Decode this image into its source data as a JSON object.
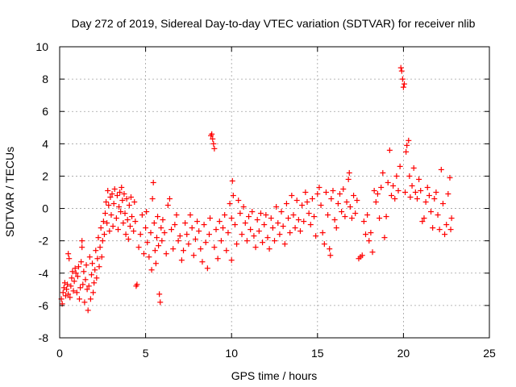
{
  "chart_data": {
    "type": "scatter",
    "title": "Day 272 of 2019, Sidereal Day-to-day VTEC variation (SDTVAR) for receiver nlib",
    "xlabel": "GPS time / hours",
    "ylabel": "SDTVAR / TECUs",
    "xlim": [
      0,
      25
    ],
    "ylim": [
      -8,
      10
    ],
    "xticks": [
      0,
      5,
      10,
      15,
      20,
      25
    ],
    "yticks": [
      -8,
      -6,
      -4,
      -2,
      0,
      2,
      4,
      6,
      8,
      10
    ],
    "xtick_labels": [
      "0",
      "5",
      "10",
      "15",
      "20",
      "25"
    ],
    "ytick_labels": [
      "-8",
      "-6",
      "-4",
      "-2",
      "0",
      "2",
      "4",
      "6",
      "8",
      "10"
    ],
    "grid": true,
    "marker": "+",
    "color": "#ff0000",
    "series": [
      {
        "name": "SDTVAR",
        "points": [
          [
            0.1,
            -5.6
          ],
          [
            0.15,
            -5.9
          ],
          [
            0.2,
            -5.2
          ],
          [
            0.25,
            -4.9
          ],
          [
            0.3,
            -4.6
          ],
          [
            0.35,
            -5.4
          ],
          [
            0.4,
            -5.0
          ],
          [
            0.45,
            -4.7
          ],
          [
            0.5,
            -5.3
          ],
          [
            0.5,
            -2.8
          ],
          [
            0.55,
            -3.1
          ],
          [
            0.6,
            -5.5
          ],
          [
            0.65,
            -4.8
          ],
          [
            0.7,
            -4.3
          ],
          [
            0.75,
            -3.9
          ],
          [
            0.8,
            -5.1
          ],
          [
            0.85,
            -4.5
          ],
          [
            0.9,
            -3.7
          ],
          [
            0.95,
            -4.0
          ],
          [
            1.0,
            -5.2
          ],
          [
            1.05,
            -4.2
          ],
          [
            1.1,
            -3.6
          ],
          [
            1.15,
            -5.6
          ],
          [
            1.2,
            -4.9
          ],
          [
            1.25,
            -3.3
          ],
          [
            1.3,
            -2.4
          ],
          [
            1.3,
            -2.0
          ],
          [
            1.35,
            -4.7
          ],
          [
            1.4,
            -3.9
          ],
          [
            1.45,
            -5.8
          ],
          [
            1.5,
            -4.4
          ],
          [
            1.55,
            -3.5
          ],
          [
            1.6,
            -5.0
          ],
          [
            1.65,
            -6.3
          ],
          [
            1.7,
            -4.8
          ],
          [
            1.75,
            -3.0
          ],
          [
            1.8,
            -5.6
          ],
          [
            1.85,
            -4.1
          ],
          [
            1.9,
            -3.4
          ],
          [
            1.95,
            -5.2
          ],
          [
            2.0,
            -4.6
          ],
          [
            2.05,
            -3.8
          ],
          [
            2.1,
            -2.6
          ],
          [
            2.15,
            -4.3
          ],
          [
            2.2,
            -3.1
          ],
          [
            2.25,
            -1.8
          ],
          [
            2.3,
            -3.6
          ],
          [
            2.35,
            -2.4
          ],
          [
            2.4,
            -1.2
          ],
          [
            2.45,
            -3.0
          ],
          [
            2.5,
            -2.0
          ],
          [
            2.55,
            -0.8
          ],
          [
            2.6,
            -1.6
          ],
          [
            2.65,
            -0.3
          ],
          [
            2.7,
            0.4
          ],
          [
            2.75,
            -0.9
          ],
          [
            2.8,
            1.1
          ],
          [
            2.85,
            0.2
          ],
          [
            2.9,
            -1.4
          ],
          [
            2.95,
            0.7
          ],
          [
            3.0,
            -0.4
          ],
          [
            3.05,
            0.9
          ],
          [
            3.1,
            -1.1
          ],
          [
            3.15,
            0.3
          ],
          [
            3.2,
            1.2
          ],
          [
            3.3,
            -0.6
          ],
          [
            3.35,
            0.8
          ],
          [
            3.4,
            -1.3
          ],
          [
            3.45,
            0.1
          ],
          [
            3.5,
            1.0
          ],
          [
            3.55,
            -0.2
          ],
          [
            3.6,
            1.3
          ],
          [
            3.65,
            0.5
          ],
          [
            3.7,
            -0.9
          ],
          [
            3.75,
            0.9
          ],
          [
            3.8,
            -0.3
          ],
          [
            3.85,
            -1.6
          ],
          [
            3.9,
            0.6
          ],
          [
            3.95,
            -0.7
          ],
          [
            4.0,
            -1.9
          ],
          [
            4.05,
            0.2
          ],
          [
            4.1,
            -1.1
          ],
          [
            4.15,
            0.7
          ],
          [
            4.2,
            -0.5
          ],
          [
            4.3,
            -1.4
          ],
          [
            4.35,
            0.4
          ],
          [
            4.4,
            -0.8
          ],
          [
            4.45,
            -4.8
          ],
          [
            4.5,
            -4.7
          ],
          [
            4.6,
            -2.4
          ],
          [
            4.7,
            -1.6
          ],
          [
            4.8,
            -0.4
          ],
          [
            4.9,
            -2.8
          ],
          [
            5.0,
            -1.2
          ],
          [
            5.05,
            -0.2
          ],
          [
            5.1,
            -2.1
          ],
          [
            5.2,
            -3.0
          ],
          [
            5.3,
            -1.5
          ],
          [
            5.35,
            -3.8
          ],
          [
            5.4,
            0.6
          ],
          [
            5.45,
            1.6
          ],
          [
            5.5,
            -0.9
          ],
          [
            5.55,
            -2.6
          ],
          [
            5.6,
            -3.4
          ],
          [
            5.65,
            -1.8
          ],
          [
            5.7,
            -0.5
          ],
          [
            5.75,
            -2.3
          ],
          [
            5.8,
            -5.3
          ],
          [
            5.85,
            -5.8
          ],
          [
            5.9,
            -1.2
          ],
          [
            5.95,
            -2.0
          ],
          [
            6.0,
            -0.7
          ],
          [
            6.1,
            -1.5
          ],
          [
            6.2,
            -2.8
          ],
          [
            6.3,
            0.2
          ],
          [
            6.4,
            0.6
          ],
          [
            6.5,
            -1.3
          ],
          [
            6.6,
            -2.5
          ],
          [
            6.7,
            -1.0
          ],
          [
            6.8,
            -0.4
          ],
          [
            6.9,
            -2.0
          ],
          [
            7.0,
            -1.7
          ],
          [
            7.1,
            -3.2
          ],
          [
            7.2,
            -2.6
          ],
          [
            7.3,
            -0.9
          ],
          [
            7.4,
            -1.6
          ],
          [
            7.5,
            -2.2
          ],
          [
            7.6,
            -0.4
          ],
          [
            7.7,
            -1.2
          ],
          [
            7.8,
            -2.9
          ],
          [
            7.9,
            -1.9
          ],
          [
            8.0,
            -0.8
          ],
          [
            8.1,
            -1.4
          ],
          [
            8.2,
            -2.5
          ],
          [
            8.3,
            -3.3
          ],
          [
            8.4,
            -1.0
          ],
          [
            8.5,
            -2.1
          ],
          [
            8.6,
            -3.7
          ],
          [
            8.7,
            -1.6
          ],
          [
            8.75,
            -0.6
          ],
          [
            8.8,
            4.5
          ],
          [
            8.85,
            4.6
          ],
          [
            8.9,
            4.3
          ],
          [
            8.95,
            4.0
          ],
          [
            9.0,
            3.7
          ],
          [
            9.0,
            -2.4
          ],
          [
            9.1,
            -1.3
          ],
          [
            9.2,
            -3.1
          ],
          [
            9.3,
            -0.8
          ],
          [
            9.4,
            -2.0
          ],
          [
            9.5,
            -1.2
          ],
          [
            9.6,
            -0.4
          ],
          [
            9.7,
            -2.6
          ],
          [
            9.8,
            -1.5
          ],
          [
            9.9,
            0.3
          ],
          [
            10.0,
            -0.6
          ],
          [
            10.0,
            -3.2
          ],
          [
            10.05,
            1.7
          ],
          [
            10.1,
            0.8
          ],
          [
            10.2,
            -1.0
          ],
          [
            10.3,
            -2.2
          ],
          [
            10.4,
            0.5
          ],
          [
            10.5,
            -0.3
          ],
          [
            10.6,
            -1.6
          ],
          [
            10.7,
            0.1
          ],
          [
            10.8,
            -0.9
          ],
          [
            10.9,
            -2.0
          ],
          [
            11.0,
            -0.5
          ],
          [
            11.1,
            -1.3
          ],
          [
            11.2,
            -0.2
          ],
          [
            11.3,
            -1.7
          ],
          [
            11.4,
            -2.4
          ],
          [
            11.5,
            -0.7
          ],
          [
            11.6,
            -1.4
          ],
          [
            11.7,
            -0.3
          ],
          [
            11.8,
            -2.1
          ],
          [
            11.9,
            -1.0
          ],
          [
            12.0,
            -0.4
          ],
          [
            12.1,
            -1.8
          ],
          [
            12.2,
            -2.5
          ],
          [
            12.3,
            -0.6
          ],
          [
            12.4,
            -1.2
          ],
          [
            12.5,
            -2.0
          ],
          [
            12.6,
            0.1
          ],
          [
            12.7,
            -0.9
          ],
          [
            12.8,
            -1.6
          ],
          [
            12.9,
            -0.2
          ],
          [
            13.0,
            -1.1
          ],
          [
            13.1,
            -2.2
          ],
          [
            13.2,
            0.3
          ],
          [
            13.3,
            -0.6
          ],
          [
            13.4,
            -1.5
          ],
          [
            13.5,
            0.8
          ],
          [
            13.6,
            -0.4
          ],
          [
            13.7,
            -1.2
          ],
          [
            13.8,
            0.5
          ],
          [
            13.9,
            -0.7
          ],
          [
            14.0,
            -1.4
          ],
          [
            14.1,
            0.2
          ],
          [
            14.2,
            -0.8
          ],
          [
            14.3,
            1.0
          ],
          [
            14.4,
            0.4
          ],
          [
            14.5,
            -0.3
          ],
          [
            14.6,
            -1.0
          ],
          [
            14.7,
            0.6
          ],
          [
            14.8,
            -0.5
          ],
          [
            14.9,
            -1.7
          ],
          [
            15.0,
            0.9
          ],
          [
            15.1,
            1.3
          ],
          [
            15.2,
            0.2
          ],
          [
            15.3,
            -1.5
          ],
          [
            15.4,
            -2.2
          ],
          [
            15.5,
            1.0
          ],
          [
            15.6,
            -0.4
          ],
          [
            15.7,
            -2.5
          ],
          [
            15.75,
            -2.9
          ],
          [
            15.8,
            0.6
          ],
          [
            15.9,
            1.1
          ],
          [
            16.0,
            -0.7
          ],
          [
            16.1,
            -1.2
          ],
          [
            16.2,
            0.3
          ],
          [
            16.3,
            0.9
          ],
          [
            16.4,
            -0.2
          ],
          [
            16.5,
            1.2
          ],
          [
            16.6,
            -0.5
          ],
          [
            16.7,
            0.4
          ],
          [
            16.8,
            1.8
          ],
          [
            16.85,
            2.2
          ],
          [
            16.9,
            0.1
          ],
          [
            17.0,
            -0.6
          ],
          [
            17.1,
            0.8
          ],
          [
            17.2,
            -0.3
          ],
          [
            17.3,
            0.5
          ],
          [
            17.4,
            -3.1
          ],
          [
            17.5,
            -3.0
          ],
          [
            17.6,
            -2.9
          ],
          [
            17.7,
            -0.8
          ],
          [
            17.8,
            -1.6
          ],
          [
            17.9,
            -0.4
          ],
          [
            18.0,
            -2.0
          ],
          [
            18.1,
            -1.5
          ],
          [
            18.2,
            -2.7
          ],
          [
            18.3,
            1.1
          ],
          [
            18.4,
            0.4
          ],
          [
            18.5,
            0.9
          ],
          [
            18.6,
            -0.6
          ],
          [
            18.7,
            1.3
          ],
          [
            18.8,
            2.2
          ],
          [
            18.9,
            -1.8
          ],
          [
            19.0,
            -0.5
          ],
          [
            19.1,
            1.6
          ],
          [
            19.2,
            3.6
          ],
          [
            19.3,
            0.8
          ],
          [
            19.4,
            1.4
          ],
          [
            19.5,
            0.6
          ],
          [
            19.6,
            2.0
          ],
          [
            19.7,
            1.1
          ],
          [
            19.8,
            2.6
          ],
          [
            19.85,
            8.7
          ],
          [
            19.9,
            8.5
          ],
          [
            19.95,
            8.0
          ],
          [
            20.0,
            7.5
          ],
          [
            20.05,
            7.7
          ],
          [
            20.1,
            1.0
          ],
          [
            20.15,
            3.5
          ],
          [
            20.2,
            3.9
          ],
          [
            20.3,
            4.2
          ],
          [
            20.35,
            2.0
          ],
          [
            20.4,
            0.7
          ],
          [
            20.5,
            1.4
          ],
          [
            20.6,
            2.5
          ],
          [
            20.7,
            1.0
          ],
          [
            20.8,
            0.6
          ],
          [
            20.9,
            1.8
          ],
          [
            21.0,
            1.1
          ],
          [
            21.1,
            -0.8
          ],
          [
            21.2,
            -0.6
          ],
          [
            21.3,
            0.4
          ],
          [
            21.4,
            1.3
          ],
          [
            21.5,
            0.8
          ],
          [
            21.6,
            -0.2
          ],
          [
            21.7,
            -1.2
          ],
          [
            21.8,
            0.6
          ],
          [
            21.9,
            1.0
          ],
          [
            22.0,
            -0.4
          ],
          [
            22.1,
            -1.3
          ],
          [
            22.2,
            2.4
          ],
          [
            22.3,
            0.3
          ],
          [
            22.4,
            -1.6
          ],
          [
            22.5,
            -1.0
          ],
          [
            22.6,
            0.9
          ],
          [
            22.7,
            1.9
          ],
          [
            22.75,
            -1.3
          ],
          [
            22.8,
            -0.6
          ]
        ]
      }
    ]
  }
}
